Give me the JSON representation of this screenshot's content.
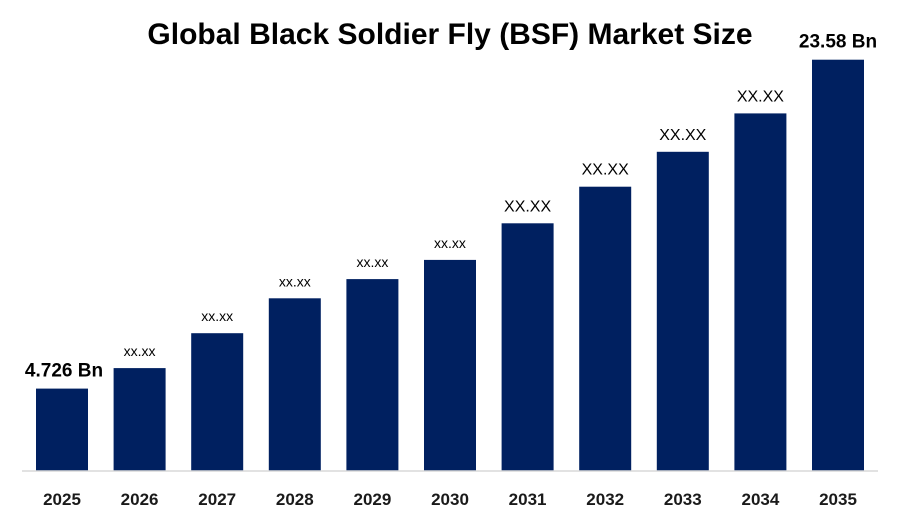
{
  "chart_data": {
    "type": "bar",
    "title": "Global Black Soldier Fly (BSF) Market Size",
    "categories": [
      "2025",
      "2026",
      "2027",
      "2028",
      "2029",
      "2030",
      "2031",
      "2032",
      "2033",
      "2034",
      "2035"
    ],
    "values": [
      4.726,
      5.9,
      7.9,
      9.9,
      11.0,
      12.1,
      14.2,
      16.3,
      18.3,
      20.5,
      23.58
    ],
    "data_labels": [
      "4.726 Bn",
      "xx.xx",
      "xx.xx",
      "xx.xx",
      "xx.xx",
      "xx.xx",
      "XX.XX",
      "XX.XX",
      "XX.XX",
      "XX.XX",
      "23.58 Bn"
    ],
    "xlabel": "",
    "ylabel": "",
    "ylim": [
      0,
      27
    ],
    "grid": false,
    "bar_color": "#002060",
    "axis_color": "#d9d9d9"
  }
}
